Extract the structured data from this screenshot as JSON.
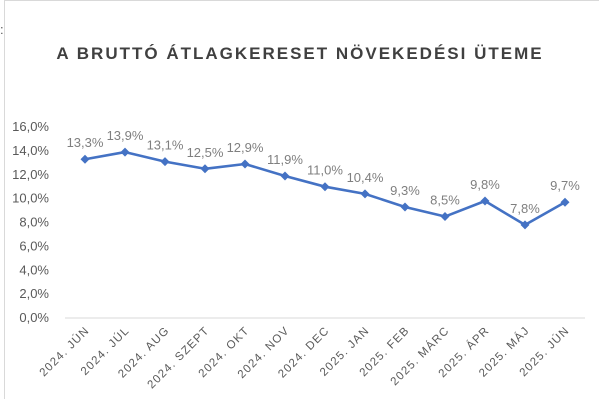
{
  "corner_mark": ":",
  "chart_data": {
    "type": "line",
    "title": "A BRUTTÓ ÁTLAGKERESET NÖVEKEDÉSI ÜTEME",
    "xlabel": "",
    "ylabel": "",
    "categories": [
      "2024. JÚN",
      "2024. JÚL",
      "2024. AUG",
      "2024. SZEPT",
      "2024. OKT",
      "2024. NOV",
      "2024. DEC",
      "2025. JAN",
      "2025. FEB",
      "2025. MÁRC",
      "2025. ÁPR",
      "2025. MÁJ",
      "2025. JÚN"
    ],
    "series": [
      {
        "values": [
          13.3,
          13.9,
          13.1,
          12.5,
          12.9,
          11.9,
          11.0,
          10.4,
          9.3,
          8.5,
          9.8,
          7.8,
          9.7
        ],
        "labels": [
          "13,3%",
          "13,9%",
          "13,1%",
          "12,5%",
          "12,9%",
          "11,9%",
          "11,0%",
          "10,4%",
          "9,3%",
          "8,5%",
          "9,8%",
          "7,8%",
          "9,7%"
        ],
        "color": "#4472c4"
      }
    ],
    "ylim": [
      0,
      16
    ],
    "yticks": [
      0,
      2,
      4,
      6,
      8,
      10,
      12,
      14,
      16
    ],
    "ytick_labels": [
      "0,0%",
      "2,0%",
      "4,0%",
      "6,0%",
      "8,0%",
      "10,0%",
      "12,0%",
      "14,0%",
      "16,0%"
    ],
    "grid": false,
    "legend": "none",
    "marker": "diamond"
  }
}
